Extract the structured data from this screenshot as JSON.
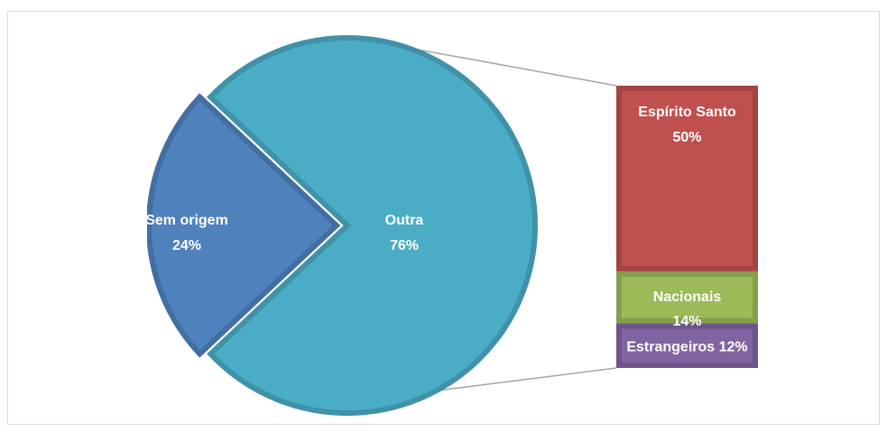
{
  "chart_data": {
    "type": "bar-of-pie",
    "pie": {
      "categories": [
        "Sem origem",
        "Outra"
      ],
      "values": [
        24,
        76
      ],
      "value_labels": [
        "24%",
        "76%"
      ],
      "colors": [
        "#4f81bd",
        "#4bacc6"
      ]
    },
    "bar": {
      "categories": [
        "Espírito Santo",
        "Nacionais",
        "Estrangeiros"
      ],
      "values": [
        50,
        14,
        12
      ],
      "value_labels": [
        "50%",
        "14%",
        "12%"
      ],
      "colors": [
        "#c0504d",
        "#9bbb59",
        "#8064a2"
      ]
    }
  }
}
